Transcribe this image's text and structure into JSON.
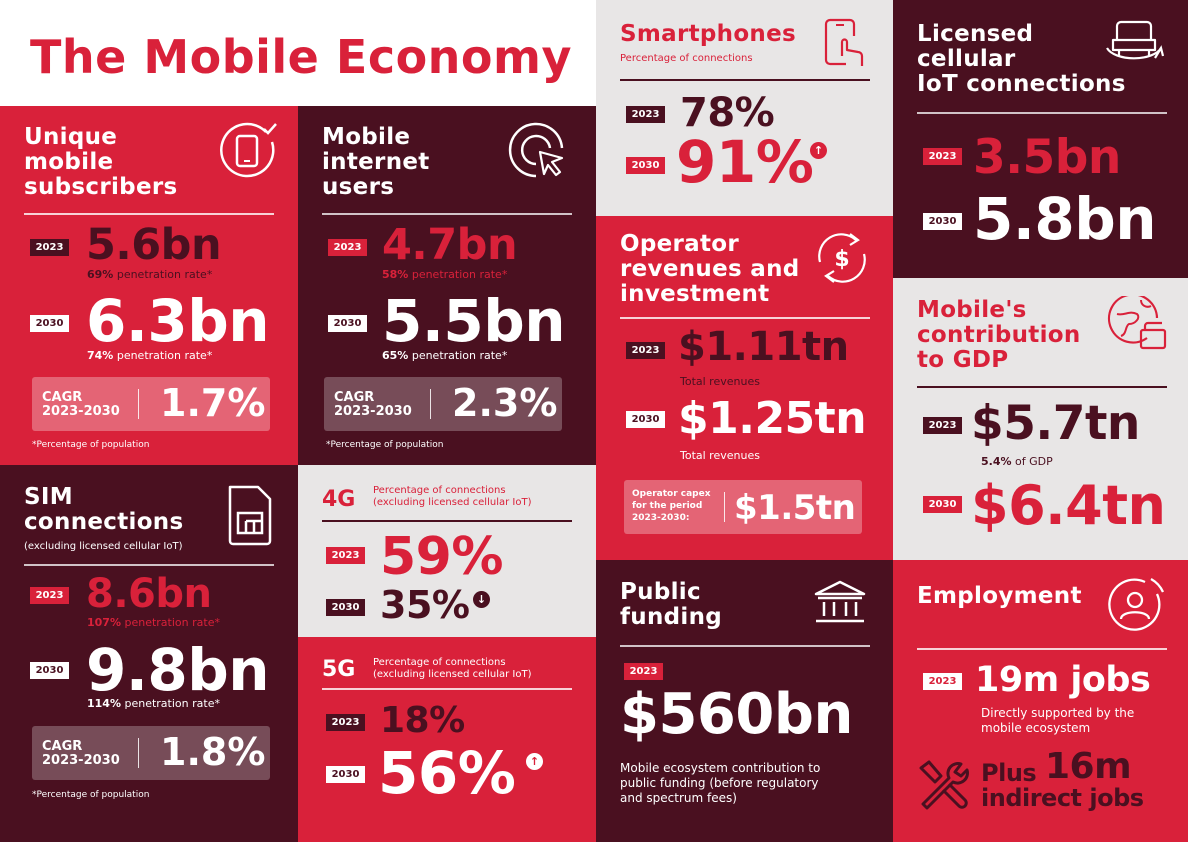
{
  "header": {
    "title": "The Mobile Economy"
  },
  "unique_subscribers": {
    "title_l1": "Unique",
    "title_l2": "mobile",
    "title_l3": "subscribers",
    "y1": "2023",
    "v1": "5.6bn",
    "n1_bold": "69%",
    "n1": " penetration rate*",
    "y2": "2030",
    "v2": "6.3bn",
    "n2_bold": "74%",
    "n2": " penetration rate*",
    "cagr_l1": "CAGR",
    "cagr_l2": "2023-2030",
    "cagr_v": "1.7%",
    "foot": "*Percentage of population",
    "icon": "phone-check-icon"
  },
  "internet_users": {
    "title_l1": "Mobile",
    "title_l2": "internet",
    "title_l3": "users",
    "y1": "2023",
    "v1": "4.7bn",
    "n1_bold": "58%",
    "n1": " penetration rate*",
    "y2": "2030",
    "v2": "5.5bn",
    "n2_bold": "65%",
    "n2": " penetration rate*",
    "cagr_l1": "CAGR",
    "cagr_l2": "2023-2030",
    "cagr_v": "2.3%",
    "foot": "*Percentage of population",
    "icon": "cursor-click-icon"
  },
  "sim": {
    "title_l1": "SIM",
    "title_l2": "connections",
    "sub": "(excluding licensed cellular IoT)",
    "y1": "2023",
    "v1": "8.6bn",
    "n1_bold": "107%",
    "n1": " penetration rate*",
    "y2": "2030",
    "v2": "9.8bn",
    "n2_bold": "114%",
    "n2": " penetration rate*",
    "cagr_l1": "CAGR",
    "cagr_l2": "2023-2030",
    "cagr_v": "1.8%",
    "foot": "*Percentage of population",
    "icon": "sim-card-icon"
  },
  "g4": {
    "label": "4G",
    "sub_l1": "Percentage of connections",
    "sub_l2": "(excluding licensed cellular IoT)",
    "y1": "2023",
    "v1": "59%",
    "y2": "2030",
    "v2": "35%",
    "arrow": "down"
  },
  "g5": {
    "label": "5G",
    "sub_l1": "Percentage of connections",
    "sub_l2": "(excluding licensed cellular IoT)",
    "y1": "2023",
    "v1": "18%",
    "y2": "2030",
    "v2": "56%",
    "arrow": "up"
  },
  "smartphones": {
    "title": "Smartphones",
    "sub": "Percentage of connections",
    "y1": "2023",
    "v1": "78%",
    "y2": "2030",
    "v2": "91%",
    "icon": "smartphone-touch-icon"
  },
  "operator": {
    "title_l1": "Operator",
    "title_l2": "revenues and",
    "title_l3": "investment",
    "y1": "2023",
    "v1": "$1.11tn",
    "n1": "Total revenues",
    "y2": "2030",
    "v2": "$1.25tn",
    "n2": "Total revenues",
    "capex_l1": "Operator capex",
    "capex_l2": "for the period",
    "capex_l3": "2023-2030:",
    "capex_v": "$1.5tn",
    "icon": "dollar-cycle-icon"
  },
  "public_funding": {
    "title_l1": "Public",
    "title_l2": "funding",
    "y1": "2023",
    "v1": "$560bn",
    "desc_l1": "Mobile ecosystem contribution to",
    "desc_l2": "public funding (before regulatory",
    "desc_l3": "and spectrum fees)",
    "icon": "bank-icon"
  },
  "iot": {
    "title_l1": "Licensed",
    "title_l2": "cellular",
    "title_l3": "IoT connections",
    "y1": "2023",
    "v1": "3.5bn",
    "y2": "2030",
    "v2": "5.8bn",
    "icon": "connected-car-icon"
  },
  "gdp": {
    "title_l1": "Mobile's",
    "title_l2": "contribution",
    "title_l3": "to GDP",
    "y1": "2023",
    "v1": "$5.7tn",
    "n1_bold": "5.4%",
    "n1": " of GDP",
    "y2": "2030",
    "v2": "$6.4tn",
    "icon": "globe-wallet-icon"
  },
  "employment": {
    "title": "Employment",
    "y1": "2023",
    "v1": "19m jobs",
    "n1_l1": "Directly supported by the",
    "n1_l2": "mobile ecosystem",
    "plus": "Plus",
    "indirect_v": "16m",
    "indirect_l": "indirect jobs",
    "icon": "person-icon",
    "icon2": "tools-icon"
  },
  "colors": {
    "red": "#d9213a",
    "dark": "#4a1020",
    "grey": "#e8e6e6",
    "white": "#ffffff"
  }
}
